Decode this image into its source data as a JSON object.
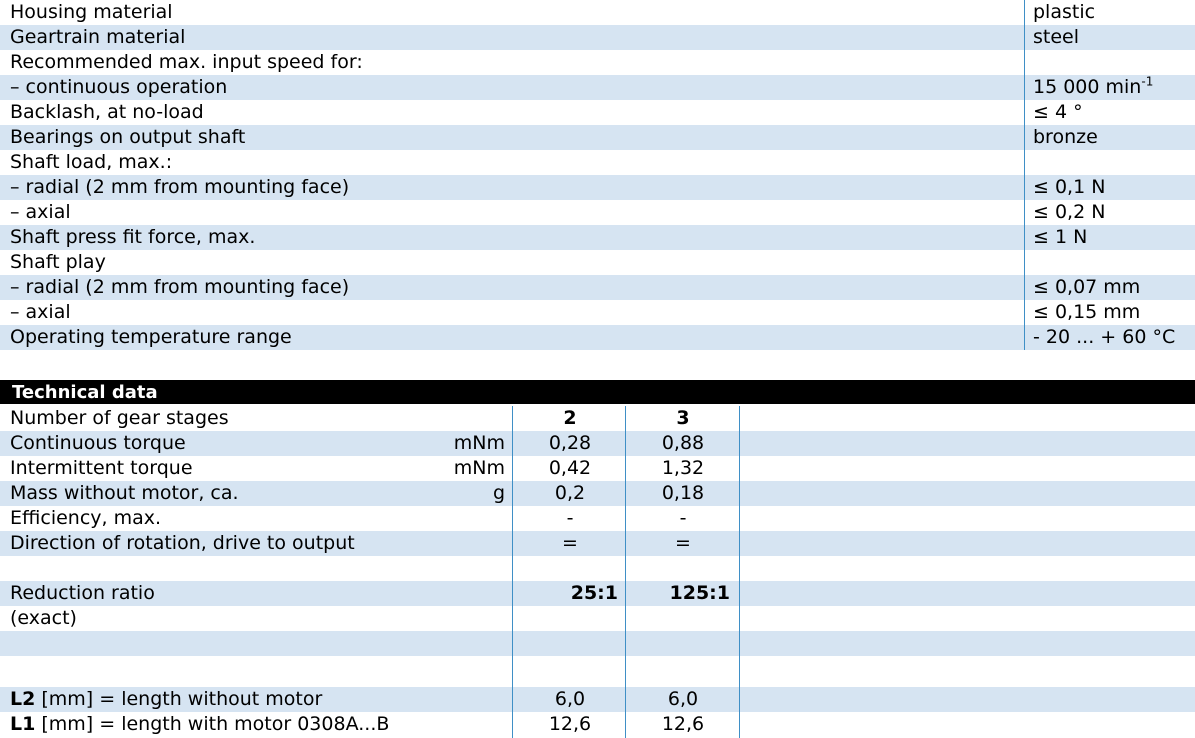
{
  "spec_rows": [
    {
      "label": "Housing material",
      "value": "plastic"
    },
    {
      "label": "Geartrain material",
      "value": "steel"
    },
    {
      "label": "Recommended max. input speed for:",
      "value": ""
    },
    {
      "label": "– continuous operation",
      "value": "15 000 min",
      "value_sup": "-1"
    },
    {
      "label": "Backlash, at no-load",
      "value": "≤ 4 °"
    },
    {
      "label": "Bearings on output shaft",
      "value": "bronze"
    },
    {
      "label": "Shaft load, max.:",
      "value": ""
    },
    {
      "label": "– radial (2 mm from mounting face)",
      "value": "≤ 0,1 N"
    },
    {
      "label": "– axial",
      "value": "≤ 0,2 N"
    },
    {
      "label": "Shaft press fit force, max.",
      "value": "≤ 1 N"
    },
    {
      "label": "Shaft play",
      "value": ""
    },
    {
      "label": "– radial (2 mm from mounting face)",
      "value": "≤ 0,07 mm"
    },
    {
      "label": "– axial",
      "value": "≤ 0,15 mm"
    },
    {
      "label": "Operating temperature range",
      "value": "- 20 ...  + 60 °C"
    }
  ],
  "tech": {
    "header": "Technical data",
    "rows": [
      {
        "label": "Number of gear stages",
        "unit": "",
        "v2": "2",
        "v3": "3"
      },
      {
        "label": "Continuous torque",
        "unit": "mNm",
        "v2": "0,28",
        "v3": "0,88"
      },
      {
        "label": "Intermittent torque",
        "unit": "mNm",
        "v2": "0,42",
        "v3": "1,32"
      },
      {
        "label": "Mass without motor, ca.",
        "unit": "g",
        "v2": "0,2",
        "v3": "0,18"
      },
      {
        "label": "Efficiency, max.",
        "unit": "",
        "v2": "-",
        "v3": "-"
      },
      {
        "label": "Direction of rotation, drive to output",
        "unit": "",
        "v2": "=",
        "v3": "="
      }
    ],
    "ratio_label": "Reduction ratio",
    "ratio_sub": "(exact)",
    "ratio_v2": "25:1",
    "ratio_v3": "125:1",
    "l2_bold": "L2",
    "l2_text": " [mm] = length without motor",
    "l2_v2": "6,0",
    "l2_v3": "6,0",
    "l1_bold": "L1",
    "l1_text": " [mm] = length with motor   0308A...B",
    "l1_v2": "12,6",
    "l1_v3": "12,6"
  },
  "colors": {
    "row_shade": "#d6e4f2",
    "divider": "#3f8fc6",
    "header_bg": "#000000"
  }
}
